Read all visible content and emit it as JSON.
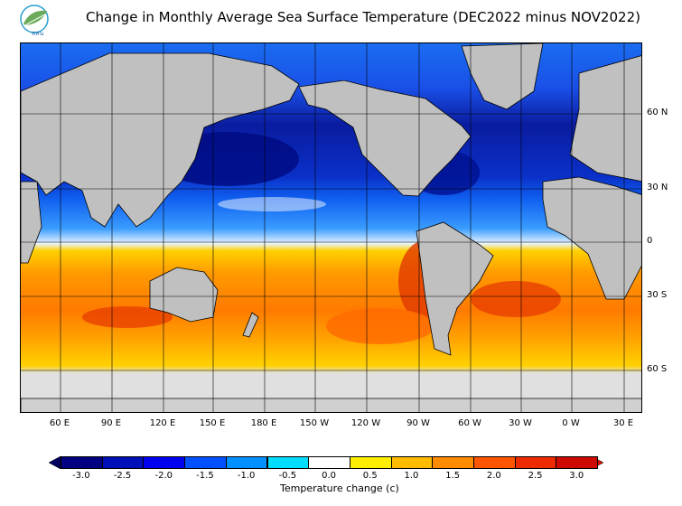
{
  "title": "Change in Monthly Average Sea Surface Temperature (DEC2022 minus NOV2022)",
  "logo_text": "สสน",
  "lat_labels": [
    "60 N",
    "30 N",
    "0",
    "30 S",
    "60 S"
  ],
  "lon_labels": [
    "60 E",
    "90 E",
    "120 E",
    "150 E",
    "180 E",
    "150 W",
    "120 W",
    "90 W",
    "60 W",
    "30 W",
    "0 W",
    "30 E"
  ],
  "colorbar": {
    "label": "Temperature change  (c)",
    "ticks": [
      "-3.0",
      "-2.5",
      "-2.0",
      "-1.5",
      "-1.0",
      "-0.5",
      "0.0",
      "0.5",
      "1.0",
      "1.5",
      "2.0",
      "2.5",
      "3.0"
    ],
    "colors": [
      "#000080",
      "#0010b8",
      "#0000f0",
      "#0050ff",
      "#0090ff",
      "#00ddff",
      "#ffffff",
      "#ffee00",
      "#ffbb00",
      "#ff8c00",
      "#ff5500",
      "#ee2a00",
      "#cc0a00"
    ],
    "under_color": "#000060",
    "over_color": "#dd1100"
  },
  "colors": {
    "land": "#c0c0c0",
    "ice": "#e0e0e0"
  }
}
